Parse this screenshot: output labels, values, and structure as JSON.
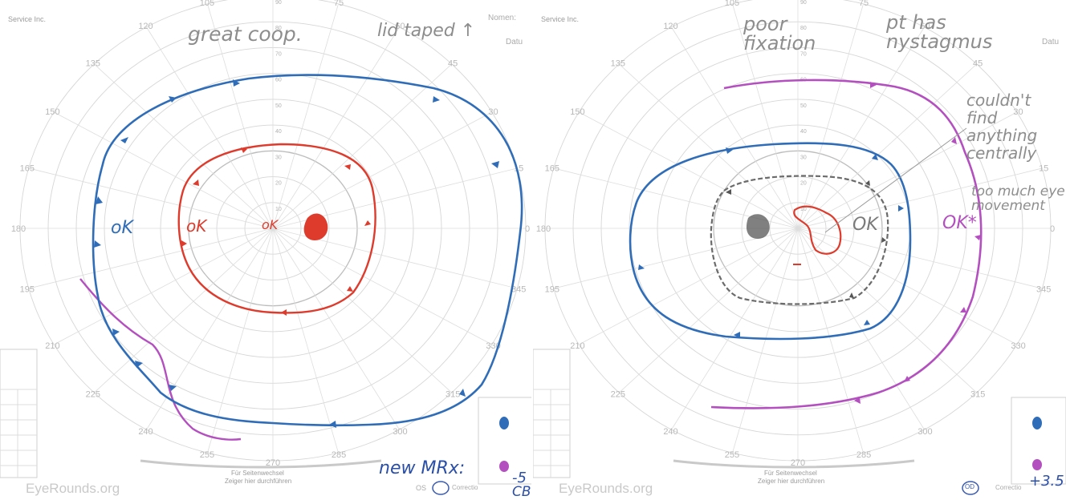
{
  "angle_labels": [
    "120",
    "105",
    "90",
    "75",
    "60",
    "135",
    "45",
    "150",
    "30",
    "165",
    "15",
    "180",
    "0",
    "195",
    "345",
    "210",
    "330",
    "225",
    "315",
    "240",
    "255",
    "270",
    "285",
    "300"
  ],
  "radial_labels": [
    "10",
    "20",
    "30",
    "40",
    "50",
    "60",
    "70",
    "80",
    "90"
  ],
  "watermark": "EyeRounds.org",
  "left_chart": {
    "form_text": "Service Inc.",
    "header_name": "Nomen:",
    "header_date": "Datu",
    "bottom_note_1": "Für Seitenwechsel",
    "bottom_note_2": "Zeiger hier durchführen",
    "eye": "OS",
    "correction_label": "Correctio",
    "annotations": {
      "top_left": "great coop.",
      "top_right": "lid taped ↑",
      "outer_ok": "oK",
      "middle_ok": "oK",
      "center_ok": "oK",
      "new_mrx": "new MRx:",
      "rx_value": "-5",
      "rx_value_2": "CB"
    },
    "colors": {
      "outer": "#2f6db8",
      "inner": "#de3b2c",
      "far": "#b44fc0"
    }
  },
  "right_chart": {
    "form_text": "Service Inc.",
    "header_date": "Datu",
    "bottom_note_1": "Für Seitenwechsel",
    "bottom_note_2": "Zeiger hier durchführen",
    "eye": "OD",
    "correction_label": "Correctio",
    "annotations": {
      "poor_fixation": "poor fixation",
      "nystagmus": "pt has nystagmus",
      "couldnt_find": "couldn't find anything centrally",
      "too_much": "too much eye movement",
      "ok_inner": "OK",
      "ok_outer": "OK*",
      "rx_value": "+3.5"
    },
    "colors": {
      "outer": "#2f6db8",
      "far": "#b44fc0",
      "inner": "#de3b2c",
      "gray": "#6b6b6b"
    }
  }
}
